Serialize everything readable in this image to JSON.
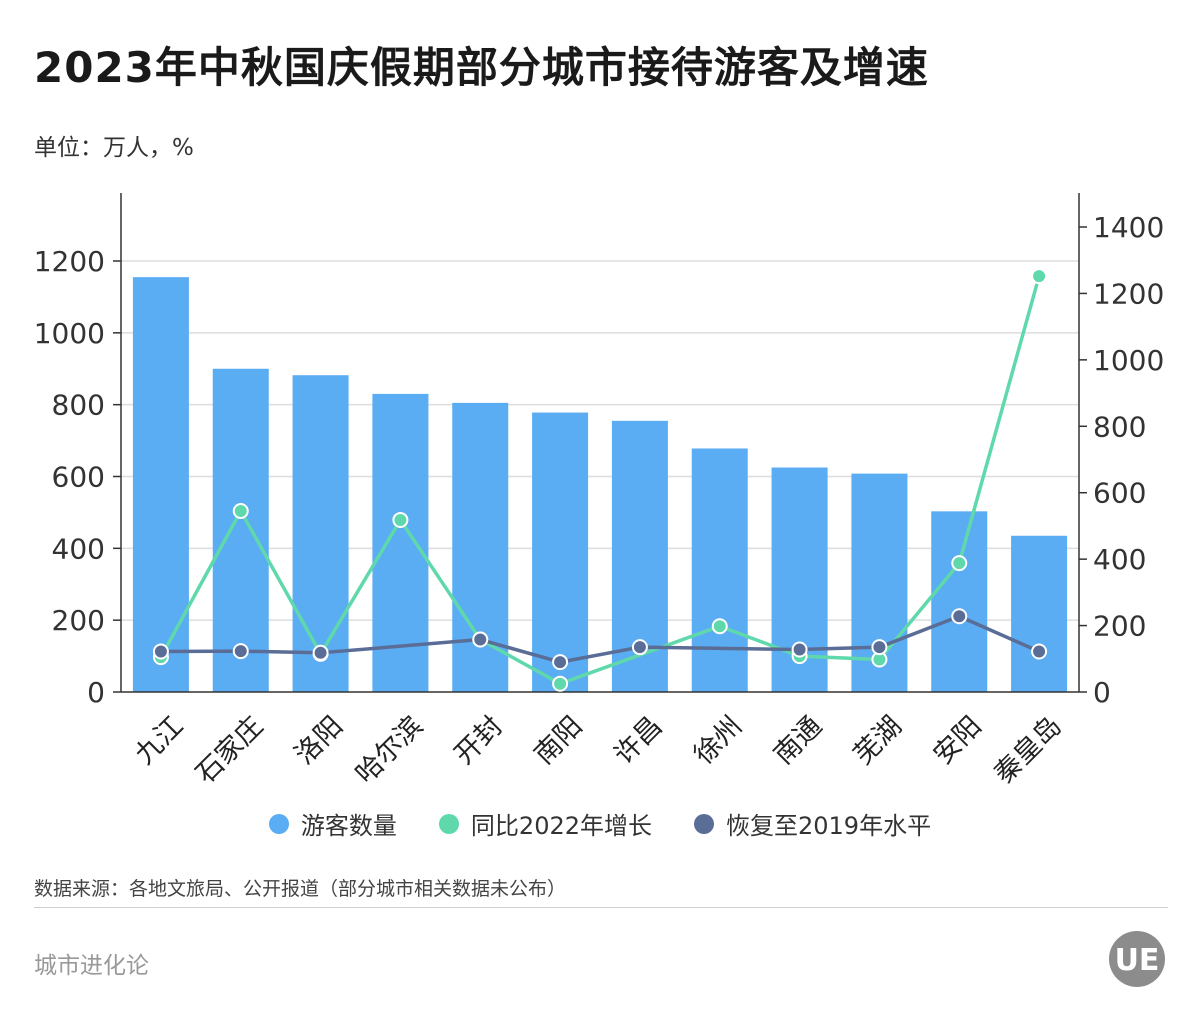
{
  "title": "2023年中秋国庆假期部分城市接待游客及增速",
  "unit": "单位：万人，%",
  "source": "数据来源：各地文旅局、公开报道（部分城市相关数据未公布）",
  "brand": "城市进化论",
  "logo_text": "UE",
  "colors": {
    "bar": "#5aacf3",
    "growth": "#5fd9ab",
    "recovery": "#5a6d96",
    "grid": "#dddddd"
  },
  "chart_data": {
    "type": "bar",
    "title": "2023年中秋国庆假期部分城市接待游客及增速",
    "categories": [
      "九江",
      "石家庄",
      "洛阳",
      "哈尔滨",
      "开封",
      "南阳",
      "许昌",
      "徐州",
      "南通",
      "芜湖",
      "安阳",
      "秦皇岛"
    ],
    "left_axis": {
      "ylim": [
        0,
        1300
      ],
      "ticks": [
        0,
        200,
        400,
        600,
        800,
        1000,
        1200
      ]
    },
    "right_axis": {
      "ylim": [
        0,
        1500
      ],
      "ticks": [
        0,
        200,
        400,
        600,
        800,
        1000,
        1200,
        1400
      ]
    },
    "grid": true,
    "legend_position": "bottom",
    "series": [
      {
        "name": "游客数量",
        "type": "bar",
        "axis": "left",
        "values": [
          1155,
          900,
          882,
          830,
          805,
          778,
          755,
          678,
          625,
          608,
          503,
          435
        ]
      },
      {
        "name": "同比2022年增长",
        "type": "line",
        "axis": "right",
        "values": [
          105,
          545,
          115,
          518,
          158,
          25,
          null,
          198,
          108,
          98,
          388,
          1252
        ]
      },
      {
        "name": "恢复至2019年水平",
        "type": "line",
        "axis": "right",
        "values": [
          122,
          123,
          118,
          null,
          158,
          90,
          135,
          null,
          128,
          135,
          228,
          122
        ]
      }
    ]
  }
}
